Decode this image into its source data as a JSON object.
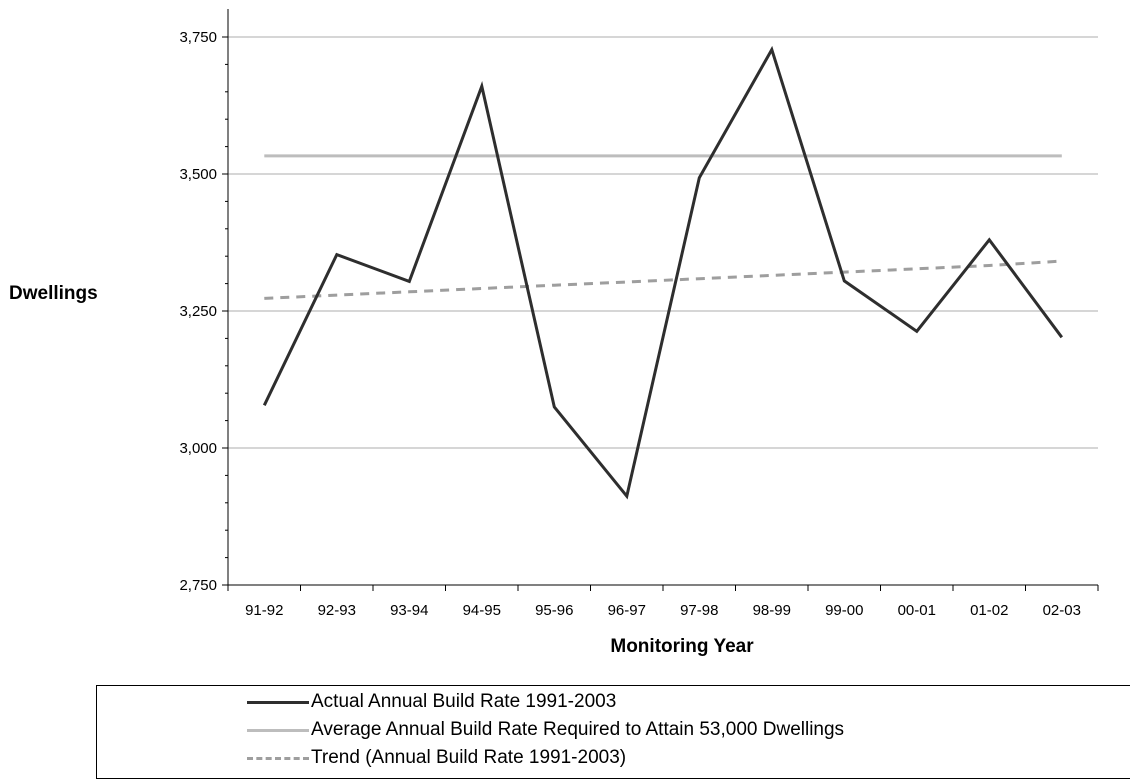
{
  "chart_data": {
    "type": "line",
    "title": "",
    "xlabel": "Monitoring Year",
    "ylabel": "Dwellings",
    "categories": [
      "91-92",
      "92-93",
      "93-94",
      "94-95",
      "95-96",
      "96-97",
      "97-98",
      "98-99",
      "99-00",
      "00-01",
      "01-02",
      "02-03"
    ],
    "ylim": [
      2750,
      3750
    ],
    "yticks": [
      2750,
      3000,
      3250,
      3500,
      3750
    ],
    "ytick_labels": [
      "2,750",
      "3,000",
      "3,250",
      "3,500",
      "3,750"
    ],
    "grid": true,
    "legend_position": "bottom",
    "series": [
      {
        "name": "Actual Annual Build Rate 1991-2003",
        "color": "#2e2e2e",
        "style": "solid",
        "values": [
          3078,
          3353,
          3304,
          3660,
          3075,
          2912,
          3493,
          3727,
          3305,
          3213,
          3380,
          3202
        ]
      },
      {
        "name": "Average Annual Build Rate Required to Attain 53,000 Dwellings",
        "color": "#bdbdbd",
        "style": "solid",
        "values": [
          3533,
          3533,
          3533,
          3533,
          3533,
          3533,
          3533,
          3533,
          3533,
          3533,
          3533,
          3533
        ]
      },
      {
        "name": "Trend (Annual Build Rate 1991-2003)",
        "color": "#9e9e9e",
        "style": "dashed",
        "values": [
          3273,
          3279,
          3285,
          3291,
          3297,
          3303,
          3309,
          3315,
          3321,
          3327,
          3333,
          3341
        ]
      }
    ]
  }
}
